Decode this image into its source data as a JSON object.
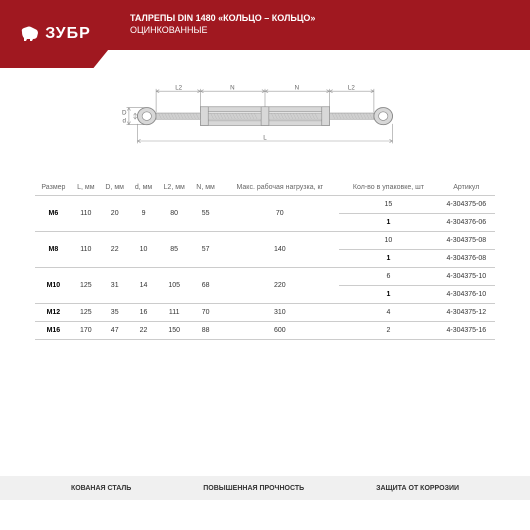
{
  "brand": {
    "logo_text": "ЗУБР"
  },
  "title": {
    "line1": "ТАЛРЕПЫ DIN 1480 «КОЛЬЦО – КОЛЬЦО»",
    "line2": "ОЦИНКОВАННЫЕ"
  },
  "diagram": {
    "labels": {
      "L": "L",
      "N_left": "N",
      "N_right": "N",
      "L2_left": "L2",
      "L2_right": "L2",
      "D": "D",
      "d": "d"
    }
  },
  "table": {
    "headers": [
      "Размер",
      "L, мм",
      "D, мм",
      "d, мм",
      "L2, мм",
      "N, мм",
      "Макс. рабочая нагрузка, кг",
      "Кол-во в упаковке, шт",
      "Артикул"
    ],
    "rows": [
      {
        "size": "M6",
        "L": "110",
        "D": "20",
        "d": "9",
        "L2": "80",
        "N": "55",
        "load": "70",
        "packs": [
          "15",
          "1"
        ],
        "arts": [
          "4-304375-06",
          "4-304376-06"
        ]
      },
      {
        "size": "M8",
        "L": "110",
        "D": "22",
        "d": "10",
        "L2": "85",
        "N": "57",
        "load": "140",
        "packs": [
          "10",
          "1"
        ],
        "arts": [
          "4-304375-08",
          "4-304376-08"
        ]
      },
      {
        "size": "M10",
        "L": "125",
        "D": "31",
        "d": "14",
        "L2": "105",
        "N": "68",
        "load": "220",
        "packs": [
          "6",
          "1"
        ],
        "arts": [
          "4-304375-10",
          "4-304376-10"
        ]
      },
      {
        "size": "M12",
        "L": "125",
        "D": "35",
        "d": "16",
        "L2": "111",
        "N": "70",
        "load": "310",
        "packs": [
          "4"
        ],
        "arts": [
          "4-304375-12"
        ]
      },
      {
        "size": "M16",
        "L": "170",
        "D": "47",
        "d": "22",
        "L2": "150",
        "N": "88",
        "load": "600",
        "packs": [
          "2"
        ],
        "arts": [
          "4-304375-16"
        ]
      }
    ]
  },
  "footer": {
    "c1": "КОВАНАЯ СТАЛЬ",
    "c2": "ПОВЫШЕННАЯ ПРОЧНОСТЬ",
    "c3": "ЗАЩИТА ОТ КОРРОЗИИ"
  },
  "colors": {
    "brand": "#a01820",
    "line": "#ccc",
    "text": "#333",
    "footer_bg": "#f0f0f0"
  }
}
